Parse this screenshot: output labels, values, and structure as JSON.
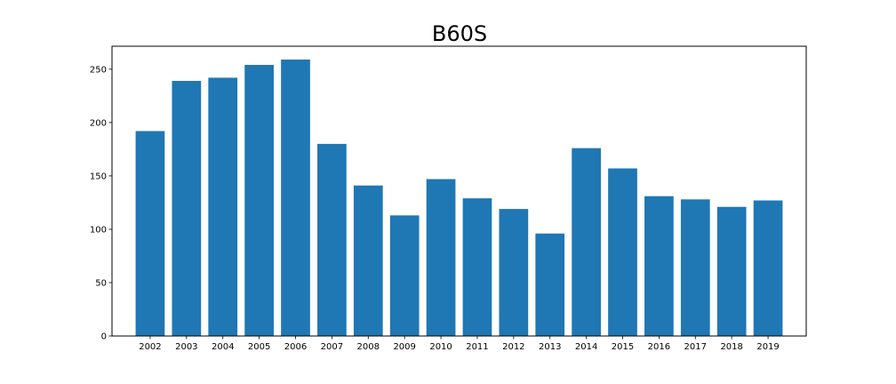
{
  "chart_data": {
    "type": "bar",
    "title": "B60S",
    "xlabel": "",
    "ylabel": "",
    "categories": [
      "2002",
      "2003",
      "2004",
      "2005",
      "2006",
      "2007",
      "2008",
      "2009",
      "2010",
      "2011",
      "2012",
      "2013",
      "2014",
      "2015",
      "2016",
      "2017",
      "2018",
      "2019"
    ],
    "values": [
      192,
      239,
      242,
      254,
      259,
      180,
      141,
      113,
      147,
      129,
      119,
      96,
      176,
      157,
      131,
      128,
      121,
      127
    ],
    "ylim": [
      0,
      271.5
    ],
    "yticks": [
      0,
      50,
      100,
      150,
      200,
      250
    ],
    "grid": false,
    "bar_color": "#1f77b4"
  }
}
